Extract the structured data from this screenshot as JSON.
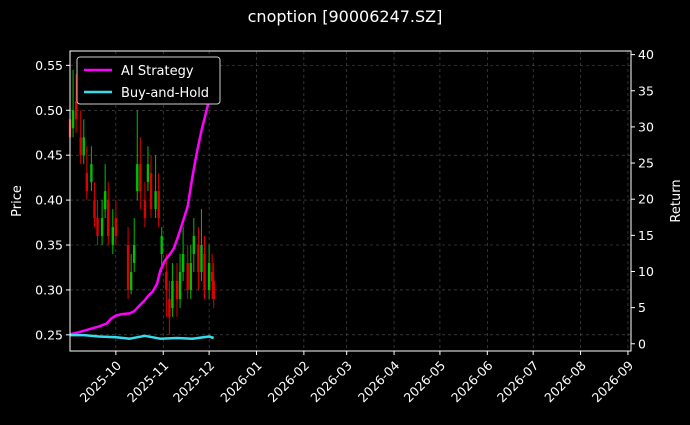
{
  "chart_data": {
    "type": "line",
    "title": "cnoption [90006247.SZ]",
    "ylabel_left": "Price",
    "ylabel_right": "Return",
    "xlim": [
      "2025-09-01",
      "2026-09-03"
    ],
    "ylim_left": [
      0.232,
      0.566
    ],
    "ylim_right": [
      -1,
      40.5
    ],
    "x_ticks": [
      "2025-10",
      "2025-11",
      "2025-12",
      "2026-01",
      "2026-02",
      "2026-03",
      "2026-04",
      "2026-05",
      "2026-06",
      "2026-07",
      "2026-08",
      "2026-09"
    ],
    "y_ticks_left": [
      0.25,
      0.3,
      0.35,
      0.4,
      0.45,
      0.5,
      0.55
    ],
    "y_ticks_left_labels": [
      "0.25",
      "0.30",
      "0.35",
      "0.40",
      "0.45",
      "0.50",
      "0.55"
    ],
    "y_ticks_right": [
      0,
      5,
      10,
      15,
      20,
      25,
      30,
      35,
      40
    ],
    "grid": true,
    "legend_position": "top-left",
    "colors": {
      "background": "#000000",
      "ai_strategy": "#ff00ff",
      "buy_and_hold": "#33ddee",
      "candle_up": "#00c000",
      "candle_down": "#e00000",
      "grid": "#555555"
    },
    "series": [
      {
        "name": "AI Strategy",
        "axis": "right",
        "x": [
          "2025-09-01",
          "2025-09-05",
          "2025-09-10",
          "2025-09-15",
          "2025-09-20",
          "2025-09-25",
          "2025-09-28",
          "2025-10-01",
          "2025-10-05",
          "2025-10-10",
          "2025-10-13",
          "2025-10-16",
          "2025-10-19",
          "2025-10-22",
          "2025-10-25",
          "2025-10-28",
          "2025-10-30",
          "2025-11-02",
          "2025-11-05",
          "2025-11-08",
          "2025-11-11",
          "2025-11-14",
          "2025-11-17",
          "2025-11-20",
          "2025-11-23",
          "2025-11-26",
          "2025-11-29",
          "2025-12-02",
          "2025-12-04"
        ],
        "values": [
          1.3,
          1.5,
          1.8,
          2.1,
          2.4,
          2.8,
          3.5,
          3.9,
          4.1,
          4.2,
          4.5,
          5.2,
          5.8,
          6.6,
          7.2,
          8.3,
          10.1,
          11.5,
          12.3,
          13.2,
          15.0,
          17.0,
          19.0,
          23.0,
          26.5,
          29.5,
          32.0,
          34.5,
          35.5
        ]
      },
      {
        "name": "Buy-and-Hold",
        "axis": "right",
        "x": [
          "2025-09-01",
          "2025-09-10",
          "2025-09-20",
          "2025-10-01",
          "2025-10-10",
          "2025-10-20",
          "2025-10-30",
          "2025-11-10",
          "2025-11-20",
          "2025-12-01",
          "2025-12-04"
        ],
        "values": [
          1.2,
          1.2,
          1.0,
          0.9,
          0.7,
          1.1,
          0.7,
          0.8,
          0.7,
          1.0,
          0.8
        ]
      }
    ],
    "candles": [
      {
        "date": "2025-09-01",
        "open": 0.49,
        "close": 0.47,
        "high": 0.55,
        "low": 0.45
      },
      {
        "date": "2025-09-03",
        "open": 0.48,
        "close": 0.5,
        "high": 0.545,
        "low": 0.47
      },
      {
        "date": "2025-09-05",
        "open": 0.51,
        "close": 0.49,
        "high": 0.54,
        "low": 0.475
      },
      {
        "date": "2025-09-08",
        "open": 0.47,
        "close": 0.45,
        "high": 0.5,
        "low": 0.44
      },
      {
        "date": "2025-09-10",
        "open": 0.45,
        "close": 0.47,
        "high": 0.49,
        "low": 0.44
      },
      {
        "date": "2025-09-12",
        "open": 0.43,
        "close": 0.41,
        "high": 0.46,
        "low": 0.4
      },
      {
        "date": "2025-09-15",
        "open": 0.42,
        "close": 0.44,
        "high": 0.46,
        "low": 0.41
      },
      {
        "date": "2025-09-17",
        "open": 0.4,
        "close": 0.38,
        "high": 0.42,
        "low": 0.37
      },
      {
        "date": "2025-09-19",
        "open": 0.38,
        "close": 0.36,
        "high": 0.4,
        "low": 0.35
      },
      {
        "date": "2025-09-22",
        "open": 0.36,
        "close": 0.38,
        "high": 0.4,
        "low": 0.35
      },
      {
        "date": "2025-09-24",
        "open": 0.39,
        "close": 0.41,
        "high": 0.44,
        "low": 0.38
      },
      {
        "date": "2025-09-26",
        "open": 0.4,
        "close": 0.36,
        "high": 0.42,
        "low": 0.35
      },
      {
        "date": "2025-09-29",
        "open": 0.35,
        "close": 0.37,
        "high": 0.39,
        "low": 0.34
      },
      {
        "date": "2025-10-01",
        "open": 0.38,
        "close": 0.36,
        "high": 0.4,
        "low": 0.35
      },
      {
        "date": "2025-10-09",
        "open": 0.35,
        "close": 0.3,
        "high": 0.37,
        "low": 0.29
      },
      {
        "date": "2025-10-11",
        "open": 0.3,
        "close": 0.32,
        "high": 0.34,
        "low": 0.295
      },
      {
        "date": "2025-10-13",
        "open": 0.33,
        "close": 0.35,
        "high": 0.38,
        "low": 0.32
      },
      {
        "date": "2025-10-15",
        "open": 0.41,
        "close": 0.44,
        "high": 0.5,
        "low": 0.4
      },
      {
        "date": "2025-10-17",
        "open": 0.44,
        "close": 0.41,
        "high": 0.47,
        "low": 0.39
      },
      {
        "date": "2025-10-20",
        "open": 0.4,
        "close": 0.38,
        "high": 0.42,
        "low": 0.37
      },
      {
        "date": "2025-10-22",
        "open": 0.42,
        "close": 0.44,
        "high": 0.46,
        "low": 0.41
      },
      {
        "date": "2025-10-24",
        "open": 0.43,
        "close": 0.39,
        "high": 0.45,
        "low": 0.38
      },
      {
        "date": "2025-10-27",
        "open": 0.39,
        "close": 0.41,
        "high": 0.45,
        "low": 0.38
      },
      {
        "date": "2025-10-29",
        "open": 0.41,
        "close": 0.38,
        "high": 0.43,
        "low": 0.37
      },
      {
        "date": "2025-10-31",
        "open": 0.34,
        "close": 0.36,
        "high": 0.37,
        "low": 0.32
      },
      {
        "date": "2025-11-03",
        "open": 0.32,
        "close": 0.3,
        "high": 0.34,
        "low": 0.27
      },
      {
        "date": "2025-11-05",
        "open": 0.29,
        "close": 0.27,
        "high": 0.31,
        "low": 0.25
      },
      {
        "date": "2025-11-07",
        "open": 0.28,
        "close": 0.31,
        "high": 0.33,
        "low": 0.27
      },
      {
        "date": "2025-11-10",
        "open": 0.31,
        "close": 0.29,
        "high": 0.33,
        "low": 0.27
      },
      {
        "date": "2025-11-12",
        "open": 0.29,
        "close": 0.32,
        "high": 0.34,
        "low": 0.28
      },
      {
        "date": "2025-11-14",
        "open": 0.32,
        "close": 0.34,
        "high": 0.37,
        "low": 0.31
      },
      {
        "date": "2025-11-17",
        "open": 0.33,
        "close": 0.3,
        "high": 0.35,
        "low": 0.29
      },
      {
        "date": "2025-11-19",
        "open": 0.3,
        "close": 0.33,
        "high": 0.35,
        "low": 0.29
      },
      {
        "date": "2025-11-21",
        "open": 0.34,
        "close": 0.36,
        "high": 0.38,
        "low": 0.32
      },
      {
        "date": "2025-11-24",
        "open": 0.35,
        "close": 0.32,
        "high": 0.37,
        "low": 0.3
      },
      {
        "date": "2025-11-26",
        "open": 0.32,
        "close": 0.35,
        "high": 0.39,
        "low": 0.31
      },
      {
        "date": "2025-11-28",
        "open": 0.34,
        "close": 0.3,
        "high": 0.36,
        "low": 0.29
      },
      {
        "date": "2025-12-01",
        "open": 0.3,
        "close": 0.33,
        "high": 0.35,
        "low": 0.29
      },
      {
        "date": "2025-12-03",
        "open": 0.32,
        "close": 0.31,
        "high": 0.34,
        "low": 0.29
      },
      {
        "date": "2025-12-04",
        "open": 0.31,
        "close": 0.29,
        "high": 0.33,
        "low": 0.28
      }
    ]
  }
}
